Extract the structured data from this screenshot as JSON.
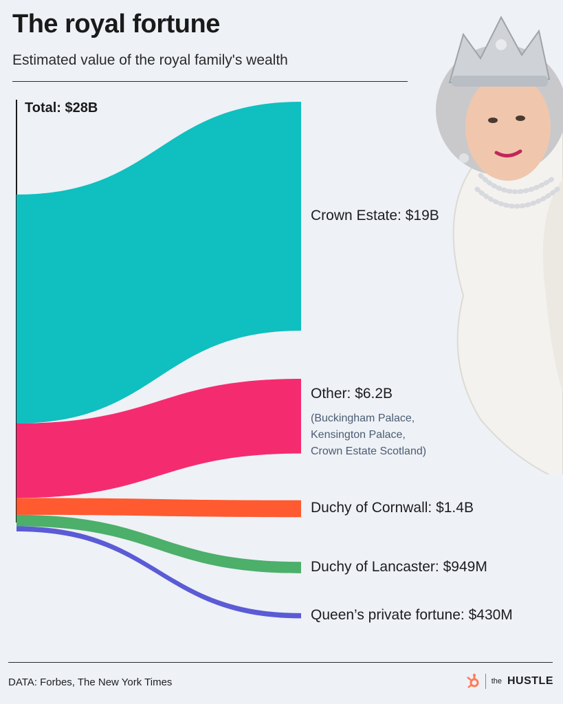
{
  "header": {
    "title": "The royal fortune",
    "subtitle": "Estimated value of the royal family's wealth"
  },
  "footer": {
    "source": "DATA: Forbes, The New York Times",
    "brand_prefix": "the",
    "brand_name": "HUSTLE"
  },
  "chart_data": {
    "type": "sankey",
    "title": "The royal fortune",
    "subtitle": "Estimated value of the royal family's wealth",
    "total": {
      "label": "Total: $28B",
      "value_billions": 28
    },
    "flows": [
      {
        "name": "Crown Estate",
        "label": "Crown Estate: $19B",
        "value_billions": 19,
        "color": "#10bfbf"
      },
      {
        "name": "Other",
        "label": "Other: $6.2B",
        "value_billions": 6.2,
        "color": "#f52b70",
        "note": [
          "(Buckingham Palace,",
          "Kensington Palace,",
          "Crown Estate Scotland)"
        ]
      },
      {
        "name": "Duchy of Cornwall",
        "label": "Duchy of Cornwall: $1.4B",
        "value_billions": 1.4,
        "color": "#ff5a30"
      },
      {
        "name": "Duchy of Lancaster",
        "label": "Duchy of Lancaster: $949M",
        "value_billions": 0.949,
        "color": "#4caf6a"
      },
      {
        "name": "Queen's private fortune",
        "label": "Queen’s private fortune: $430M",
        "value_billions": 0.43,
        "color": "#5b5bd6"
      }
    ]
  }
}
